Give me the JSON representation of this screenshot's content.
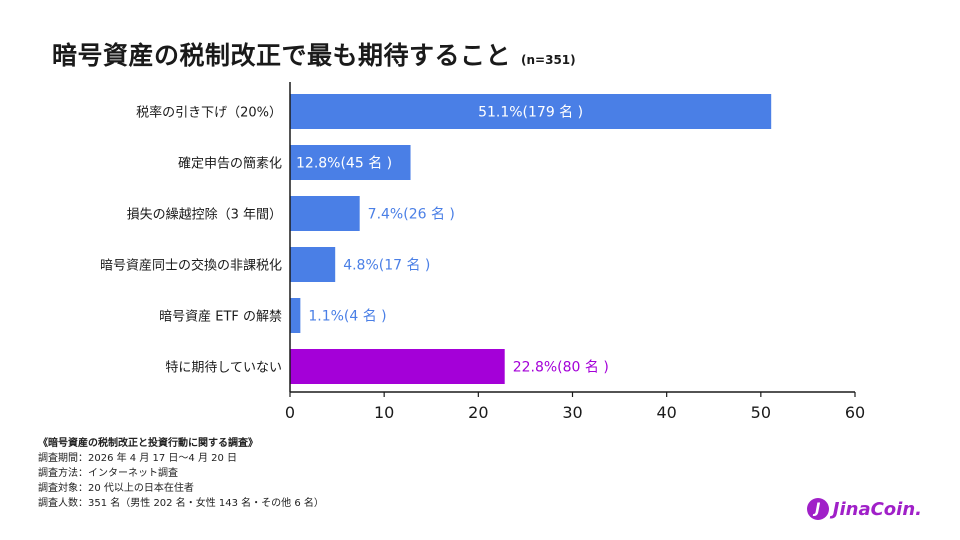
{
  "title": "暗号資産の税制改正で最も期待すること",
  "sample": "(n=351)",
  "chart_data": {
    "type": "bar",
    "orientation": "horizontal",
    "categories": [
      "税率の引き下げ（20%）",
      "確定申告の簡素化",
      "損失の繰越控除（3 年間）",
      "暗号資産同士の交換の非課税化",
      "暗号資産 ETF の解禁",
      "特に期待していない"
    ],
    "values": [
      51.1,
      12.8,
      7.4,
      4.8,
      1.1,
      22.8
    ],
    "data_labels": [
      "51.1%(179 名 )",
      "12.8%(45 名 )",
      "7.4%(26 名 )",
      "4.8%(17 名 )",
      "1.1%(4 名 )",
      "22.8%(80 名 )"
    ],
    "colors": [
      "#4a7fe6",
      "#4a7fe6",
      "#4a7fe6",
      "#4a7fe6",
      "#4a7fe6",
      "#a400d8"
    ],
    "label_inside": [
      true,
      true,
      false,
      false,
      false,
      false
    ],
    "xlim": [
      0,
      60
    ],
    "xticks": [
      0,
      10,
      20,
      30,
      40,
      50,
      60
    ],
    "grid": false
  },
  "footer": {
    "heading": "《暗号資産の税制改正と投資行動に関する調査》",
    "lines": [
      "調査期間：2026 年 4 月 17 日〜4 月 20 日",
      "調査方法：インターネット調査",
      "調査対象：20 代以上の日本在住者",
      "調査人数：351 名（男性 202 名・女性 143 名・その他 6 名）"
    ]
  },
  "logo": {
    "mark": "J",
    "text": "JinaCoin."
  }
}
